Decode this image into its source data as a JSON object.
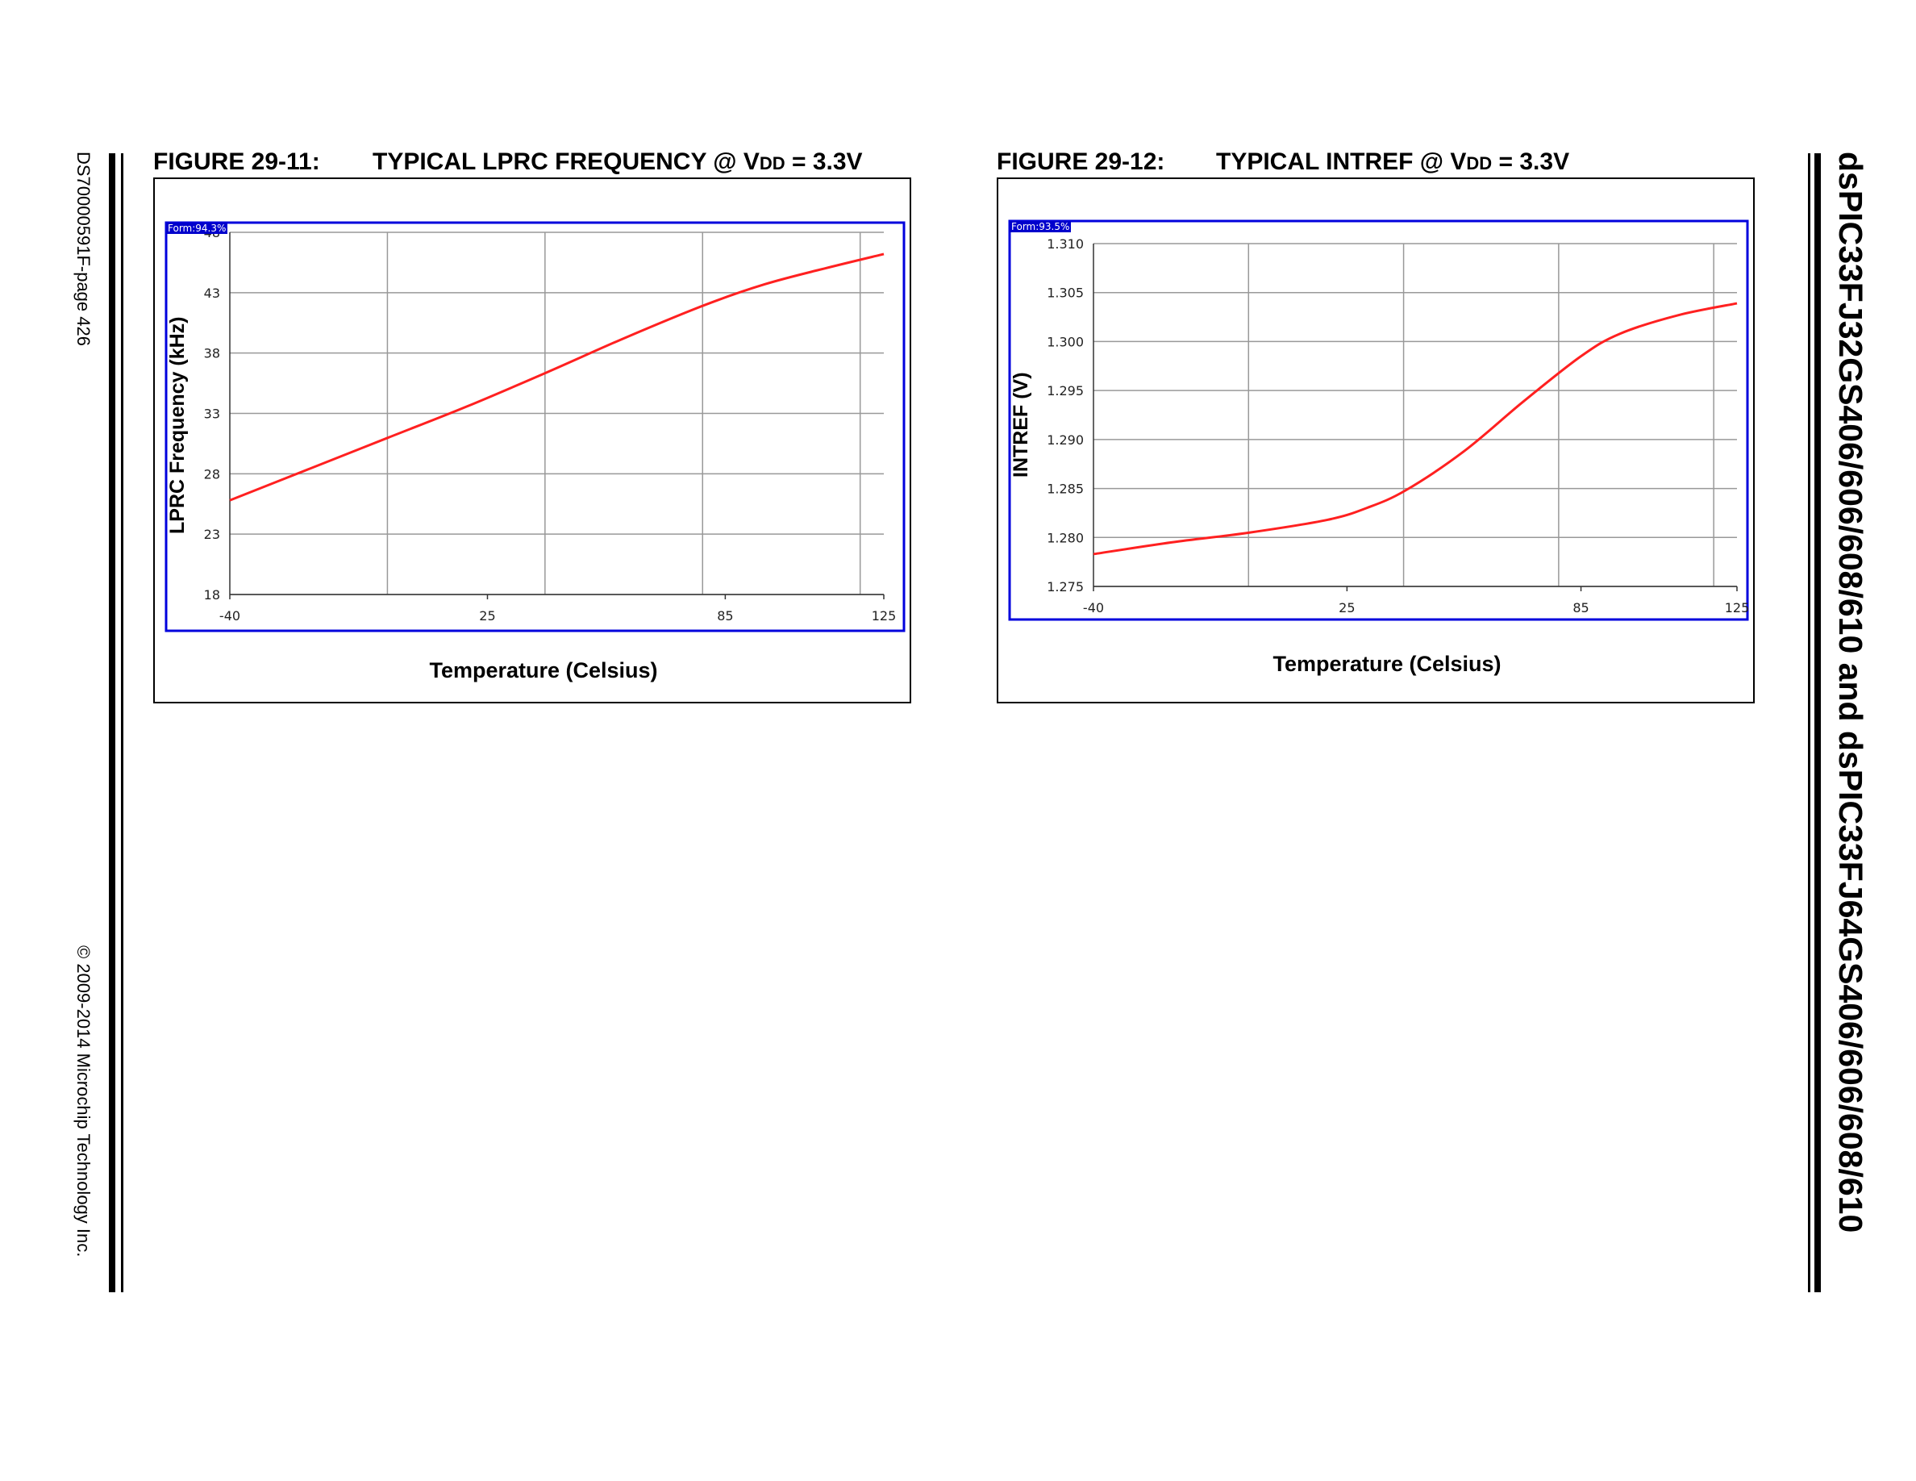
{
  "page": {
    "doc_number": "DS70000591F-page 426",
    "copyright": "© 2009-2014 Microchip Technology Inc.",
    "side_title": "dsPIC33FJ32GS406/606/608/610 and dsPIC33FJ64GS406/606/608/610"
  },
  "figures": [
    {
      "number": "FIGURE 29-11:",
      "title_prefix": "TYPICAL LPRC FREQUENCY @ V",
      "title_sub": "DD",
      "title_suffix": " = 3.3V",
      "form_tag": "Form:94.3%"
    },
    {
      "number": "FIGURE 29-12:",
      "title_prefix": "TYPICAL INTREF @ V",
      "title_sub": "DD",
      "title_suffix": " = 3.3V",
      "form_tag": "Form:93.5%"
    }
  ],
  "chart_data": [
    {
      "type": "line",
      "xlabel": "Temperature (Celsius)",
      "ylabel": "LPRC Frequency (kHz)",
      "xlim": [
        -40,
        125
      ],
      "ylim": [
        18,
        48
      ],
      "x_ticks": [
        -40,
        25,
        85,
        125
      ],
      "y_ticks": [
        18,
        23,
        28,
        33,
        38,
        43,
        48
      ],
      "y_tick_labels": [
        "18",
        "23",
        "28",
        "33",
        "38",
        "43",
        "48"
      ],
      "grid": true,
      "line_color": "#ff2020",
      "series": [
        {
          "x": [
            -40,
            -20,
            0,
            20,
            40,
            60,
            80,
            95,
            110,
            125
          ],
          "values": [
            25.8,
            28.4,
            31.0,
            33.6,
            36.4,
            39.3,
            42.0,
            43.7,
            45.0,
            46.2
          ]
        }
      ]
    },
    {
      "type": "line",
      "xlabel": "Temperature (Celsius)",
      "ylabel": "INTREF (V)",
      "xlim": [
        -40,
        125
      ],
      "ylim": [
        1.275,
        1.31
      ],
      "x_ticks": [
        -40,
        25,
        85,
        125
      ],
      "y_ticks": [
        1.275,
        1.28,
        1.285,
        1.29,
        1.295,
        1.3,
        1.305,
        1.31
      ],
      "y_tick_labels": [
        "1.275",
        "1.280",
        "1.285",
        "1.290",
        "1.295",
        "1.300",
        "1.305",
        "1.310"
      ],
      "grid": true,
      "line_color": "#ff2020",
      "series": [
        {
          "x": [
            -40,
            -20,
            0,
            20,
            30,
            40,
            55,
            70,
            85,
            95,
            110,
            125
          ],
          "values": [
            1.2783,
            1.2795,
            1.2805,
            1.2818,
            1.283,
            1.2848,
            1.2888,
            1.2938,
            1.2985,
            1.3008,
            1.3027,
            1.3039
          ]
        }
      ]
    }
  ]
}
